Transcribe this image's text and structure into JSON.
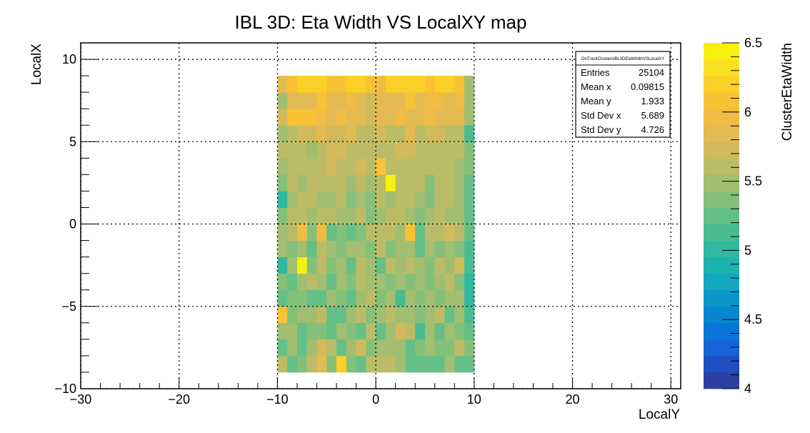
{
  "chart_data": {
    "type": "heatmap",
    "title": "IBL 3D: Eta Width VS LocalXY map",
    "xlabel": "LocalY",
    "ylabel": "LocalX",
    "zlabel": "ClusterEtaWidth",
    "xlim": [
      -30,
      31
    ],
    "ylim": [
      -10,
      11
    ],
    "zlim": [
      4,
      6.5
    ],
    "x_ticks": [
      "−30",
      "−20",
      "−10",
      "0",
      "10",
      "20",
      "30"
    ],
    "x_tick_values": [
      -30,
      -20,
      -10,
      0,
      10,
      20,
      30
    ],
    "y_ticks": [
      "−10",
      "−5",
      "0",
      "5",
      "10"
    ],
    "y_tick_values": [
      -10,
      -5,
      0,
      5,
      10
    ],
    "z_ticks": [
      "4",
      "4.5",
      "5",
      "5.5",
      "6",
      "6.5"
    ],
    "z_tick_values": [
      4,
      4.5,
      5,
      5.5,
      6,
      6.5
    ],
    "grid": true,
    "palette": [
      "#2a3fa0",
      "#1f4fc0",
      "#1565d8",
      "#0a75d8",
      "#0886d0",
      "#0a98c8",
      "#12a8c0",
      "#1eb2ae",
      "#30b8a0",
      "#48bc90",
      "#64c086",
      "#84c07a",
      "#a2be70",
      "#bcbc66",
      "#d2ba5c",
      "#e4ba52",
      "#f0bc44",
      "#f8c234",
      "#fad028",
      "#fae020",
      "#f8f010"
    ],
    "x_edges": [
      -10,
      -9,
      -8,
      -7,
      -6,
      -5,
      -4,
      -3,
      -2,
      -1,
      0,
      1,
      2,
      3,
      4,
      5,
      6,
      7,
      8,
      9,
      10
    ],
    "y_edges": [
      -9,
      -8,
      -7,
      -6,
      -5,
      -4,
      -3,
      -2,
      -1,
      0,
      1,
      2,
      3,
      4,
      5,
      6,
      7,
      8,
      9
    ],
    "z": [
      [
        5.55,
        5.2,
        5.35,
        5.65,
        5.85,
        5.4,
        6.2,
        5.4,
        5.25,
        5.6,
        5.55,
        5.55,
        5.5,
        5.2,
        5.3,
        5.2,
        5.2,
        5.45,
        5.3,
        5.25
      ],
      [
        5.3,
        5.45,
        5.25,
        5.5,
        5.75,
        5.55,
        5.3,
        5.45,
        5.7,
        5.35,
        5.5,
        5.45,
        5.45,
        5.3,
        5.35,
        5.5,
        5.35,
        5.35,
        5.55,
        5.35
      ],
      [
        5.45,
        5.5,
        5.3,
        5.4,
        5.35,
        5.3,
        5.5,
        5.4,
        5.25,
        5.55,
        5.2,
        5.5,
        5.7,
        5.55,
        5.1,
        5.45,
        5.25,
        5.5,
        5.4,
        5.3
      ],
      [
        6.1,
        5.35,
        5.5,
        5.5,
        5.55,
        5.2,
        5.2,
        5.45,
        5.6,
        5.4,
        5.5,
        5.55,
        5.45,
        5.45,
        5.4,
        5.45,
        5.6,
        5.3,
        5.45,
        5.15
      ],
      [
        5.3,
        5.4,
        5.35,
        5.3,
        5.2,
        5.5,
        5.4,
        5.25,
        5.45,
        5.55,
        5.35,
        5.5,
        5.1,
        5.45,
        5.4,
        5.45,
        5.35,
        5.5,
        5.45,
        5.05
      ],
      [
        5.35,
        5.3,
        5.45,
        5.55,
        5.45,
        5.3,
        5.5,
        5.35,
        5.6,
        5.45,
        5.5,
        5.35,
        5.45,
        5.35,
        5.5,
        5.4,
        5.45,
        5.55,
        5.35,
        5.05
      ],
      [
        5.05,
        5.5,
        6.45,
        5.4,
        5.55,
        5.35,
        5.45,
        5.3,
        5.55,
        5.5,
        5.2,
        5.65,
        5.5,
        5.65,
        5.45,
        5.4,
        5.55,
        5.5,
        5.7,
        5.15
      ],
      [
        5.45,
        5.35,
        5.5,
        5.3,
        5.55,
        5.45,
        5.35,
        5.5,
        5.45,
        5.35,
        5.55,
        5.4,
        5.5,
        5.45,
        5.3,
        5.5,
        5.4,
        5.45,
        5.35,
        5.1
      ],
      [
        5.5,
        5.55,
        6.0,
        5.4,
        5.95,
        5.2,
        5.35,
        5.25,
        5.4,
        5.55,
        5.6,
        5.55,
        5.5,
        6.1,
        5.2,
        5.55,
        5.65,
        5.75,
        5.6,
        5.3
      ],
      [
        5.35,
        5.55,
        5.6,
        5.5,
        5.55,
        5.6,
        5.5,
        5.45,
        5.55,
        5.35,
        5.5,
        5.6,
        5.55,
        5.5,
        5.4,
        5.5,
        5.55,
        5.45,
        5.5,
        5.3
      ],
      [
        5.05,
        5.5,
        5.6,
        5.55,
        5.5,
        5.5,
        5.6,
        5.4,
        5.5,
        5.35,
        5.55,
        5.5,
        5.6,
        5.55,
        5.5,
        5.4,
        5.55,
        5.6,
        5.5,
        5.25
      ],
      [
        5.4,
        5.6,
        5.5,
        5.65,
        5.6,
        5.55,
        5.65,
        5.5,
        5.6,
        5.45,
        5.65,
        6.5,
        5.65,
        5.55,
        5.6,
        5.4,
        5.6,
        5.55,
        5.45,
        5.3
      ],
      [
        5.45,
        5.6,
        5.65,
        5.6,
        5.55,
        5.7,
        5.65,
        5.6,
        5.7,
        5.55,
        6.1,
        5.6,
        5.55,
        5.65,
        5.6,
        5.55,
        5.65,
        5.6,
        5.5,
        5.35
      ],
      [
        5.55,
        5.55,
        5.6,
        5.5,
        5.65,
        5.75,
        5.7,
        5.65,
        5.6,
        5.55,
        5.55,
        5.6,
        5.7,
        5.75,
        5.65,
        5.6,
        5.55,
        5.6,
        5.55,
        5.4
      ],
      [
        5.45,
        5.6,
        5.7,
        5.75,
        5.8,
        5.7,
        5.75,
        5.8,
        5.65,
        5.6,
        5.75,
        5.55,
        5.6,
        5.8,
        5.65,
        5.7,
        5.75,
        5.6,
        5.65,
        5.1
      ],
      [
        5.7,
        6.05,
        6.1,
        6.05,
        6.0,
        5.9,
        5.95,
        5.85,
        5.9,
        5.75,
        5.85,
        5.9,
        5.95,
        5.85,
        5.9,
        5.95,
        5.85,
        5.8,
        5.9,
        5.5
      ],
      [
        5.5,
        5.85,
        5.9,
        5.85,
        6.05,
        5.8,
        5.9,
        6.0,
        5.9,
        5.7,
        5.85,
        5.85,
        5.9,
        6.05,
        5.9,
        6.0,
        5.95,
        5.9,
        6.0,
        5.5
      ],
      [
        5.85,
        6.1,
        6.25,
        6.2,
        6.15,
        6.05,
        6.05,
        6.15,
        6.2,
        6.05,
        5.95,
        6.2,
        6.25,
        6.2,
        6.15,
        6.1,
        6.2,
        6.2,
        6.05,
        5.5
      ]
    ],
    "stats": {
      "name": "OnTrackClustersIBL3DEtaWidthVSLocalXY",
      "rows": [
        {
          "label": "Entries",
          "value": "25104"
        },
        {
          "label": "Mean x",
          "value": "0.09815"
        },
        {
          "label": "Mean y",
          "value": "1.933"
        },
        {
          "label": "Std Dev x",
          "value": "5.689"
        },
        {
          "label": "Std Dev y",
          "value": "4.726"
        }
      ]
    }
  }
}
